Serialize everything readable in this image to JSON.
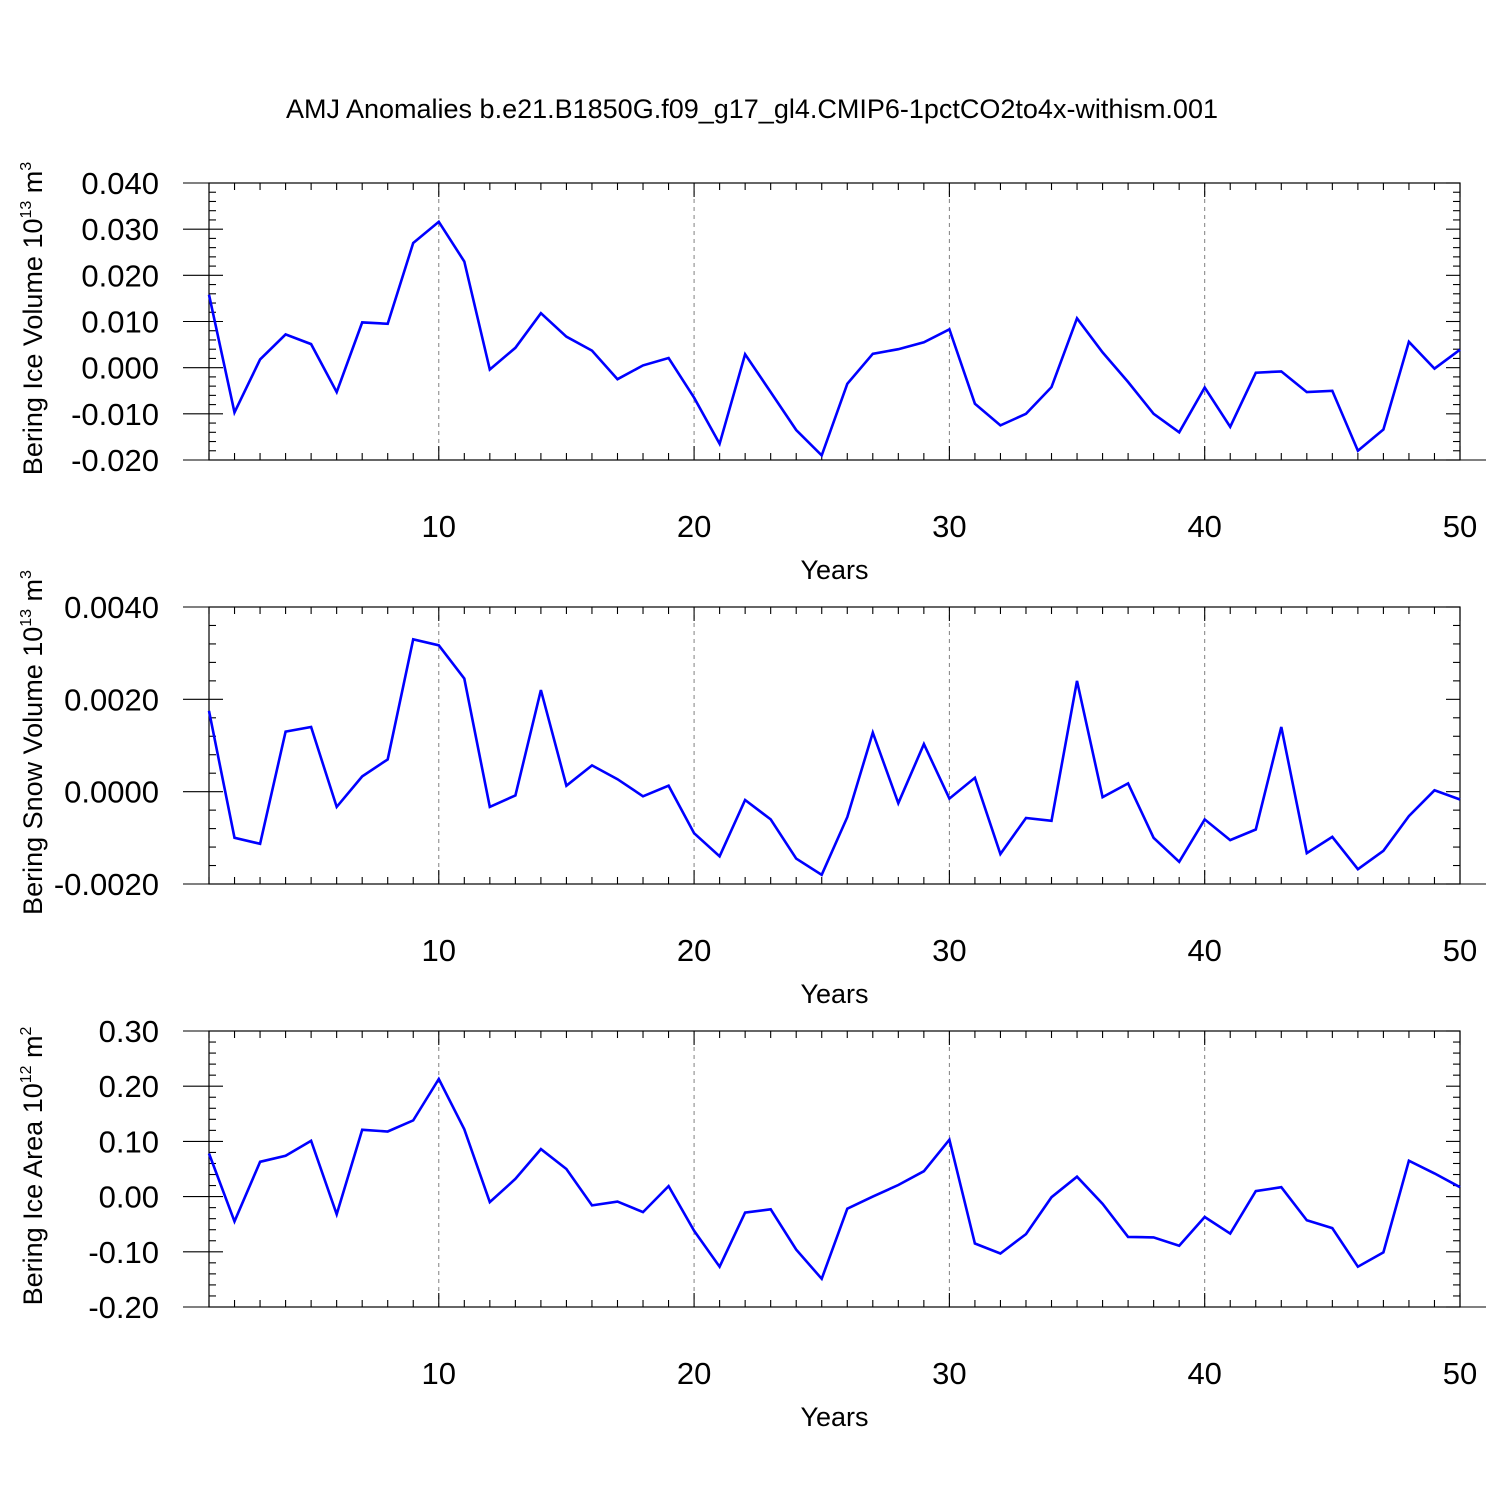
{
  "title": "AMJ Anomalies b.e21.B1850G.f09_g17_gl4.CMIP6-1pctCO2to4x-withism.001",
  "colors": {
    "line": "#0000ff",
    "grid": "#808080",
    "axes": "#000000"
  },
  "chart_data": [
    {
      "type": "line",
      "title": "",
      "xlabel": "Years",
      "ylabel": {
        "text": "Bering Ice Volume 10",
        "sup": "13",
        "unit": " m",
        "unit_sup": "3"
      },
      "x": [
        1,
        2,
        3,
        4,
        5,
        6,
        7,
        8,
        9,
        10,
        11,
        12,
        13,
        14,
        15,
        16,
        17,
        18,
        19,
        20,
        21,
        22,
        23,
        24,
        25,
        26,
        27,
        28,
        29,
        30,
        31,
        32,
        33,
        34,
        35,
        36,
        37,
        38,
        39,
        40,
        41,
        42,
        43,
        44,
        45,
        46,
        47,
        48,
        49,
        50
      ],
      "xlim": [
        1,
        50
      ],
      "xticks": [
        10,
        20,
        30,
        40,
        50
      ],
      "xtick_labels": [
        "10",
        "20",
        "30",
        "40",
        "50"
      ],
      "ylim": [
        -0.02,
        0.04
      ],
      "yticks": [
        -0.02,
        -0.01,
        0.0,
        0.01,
        0.02,
        0.03,
        0.04
      ],
      "ytick_labels": [
        "-0.020",
        "-0.010",
        "0.000",
        "0.010",
        "0.020",
        "0.030",
        "0.040"
      ],
      "grid": "x-dashed",
      "series": [
        {
          "values": [
            0.0158,
            -0.0097,
            0.0018,
            0.0072,
            0.0051,
            -0.0053,
            0.0098,
            0.0095,
            0.027,
            0.0316,
            0.023,
            -0.0004,
            0.0043,
            0.0118,
            0.0067,
            0.0037,
            -0.0025,
            0.0005,
            0.0021,
            -0.0065,
            -0.0165,
            0.0029,
            -0.0053,
            -0.0135,
            -0.019,
            -0.0035,
            0.003,
            0.004,
            0.0055,
            0.0083,
            -0.0078,
            -0.0125,
            -0.01,
            -0.0042,
            0.0107,
            0.0033,
            -0.0031,
            -0.01,
            -0.014,
            -0.0043,
            -0.0128,
            -0.0011,
            -0.0008,
            -0.0053,
            -0.005,
            -0.018,
            -0.0134,
            0.0056,
            -0.0002,
            0.0039
          ]
        }
      ]
    },
    {
      "type": "line",
      "title": "",
      "xlabel": "Years",
      "ylabel": {
        "text": "Bering Snow Volume 10",
        "sup": "13",
        "unit": " m",
        "unit_sup": "3"
      },
      "x": [
        1,
        2,
        3,
        4,
        5,
        6,
        7,
        8,
        9,
        10,
        11,
        12,
        13,
        14,
        15,
        16,
        17,
        18,
        19,
        20,
        21,
        22,
        23,
        24,
        25,
        26,
        27,
        28,
        29,
        30,
        31,
        32,
        33,
        34,
        35,
        36,
        37,
        38,
        39,
        40,
        41,
        42,
        43,
        44,
        45,
        46,
        47,
        48,
        49,
        50
      ],
      "xlim": [
        1,
        50
      ],
      "xticks": [
        10,
        20,
        30,
        40,
        50
      ],
      "xtick_labels": [
        "10",
        "20",
        "30",
        "40",
        "50"
      ],
      "ylim": [
        -0.002,
        0.004
      ],
      "yticks": [
        -0.002,
        0.0,
        0.002,
        0.004
      ],
      "ytick_labels": [
        "-0.0020",
        "0.0000",
        "0.0020",
        "0.0040"
      ],
      "grid": "x-dashed",
      "series": [
        {
          "values": [
            0.00175,
            -0.001,
            -0.00113,
            0.0013,
            0.0014,
            -0.00033,
            0.00033,
            0.0007,
            0.0033,
            0.00317,
            0.00245,
            -0.00033,
            -8e-05,
            0.0022,
            0.00013,
            0.00057,
            0.00027,
            -0.0001,
            0.00013,
            -0.0009,
            -0.0014,
            -0.00018,
            -0.0006,
            -0.00145,
            -0.0018,
            -0.00055,
            0.00128,
            -0.00025,
            0.00103,
            -0.00015,
            0.0003,
            -0.00135,
            -0.00057,
            -0.00063,
            0.0024,
            -0.00012,
            0.00018,
            -0.001,
            -0.00152,
            -0.0006,
            -0.00105,
            -0.00082,
            0.0014,
            -0.00133,
            -0.00098,
            -0.00168,
            -0.00128,
            -0.00053,
            3e-05,
            -0.00017
          ]
        }
      ]
    },
    {
      "type": "line",
      "title": "",
      "xlabel": "Years",
      "ylabel": {
        "text": "Bering Ice Area 10",
        "sup": "12",
        "unit": " m",
        "unit_sup": "2"
      },
      "x": [
        1,
        2,
        3,
        4,
        5,
        6,
        7,
        8,
        9,
        10,
        11,
        12,
        13,
        14,
        15,
        16,
        17,
        18,
        19,
        20,
        21,
        22,
        23,
        24,
        25,
        26,
        27,
        28,
        29,
        30,
        31,
        32,
        33,
        34,
        35,
        36,
        37,
        38,
        39,
        40,
        41,
        42,
        43,
        44,
        45,
        46,
        47,
        48,
        49,
        50
      ],
      "xlim": [
        1,
        50
      ],
      "xticks": [
        10,
        20,
        30,
        40,
        50
      ],
      "xtick_labels": [
        "10",
        "20",
        "30",
        "40",
        "50"
      ],
      "ylim": [
        -0.2,
        0.3
      ],
      "yticks": [
        -0.2,
        -0.1,
        0.0,
        0.1,
        0.2,
        0.3
      ],
      "ytick_labels": [
        "-0.20",
        "-0.10",
        "0.00",
        "0.10",
        "0.20",
        "0.30"
      ],
      "grid": "x-dashed",
      "series": [
        {
          "values": [
            0.078,
            -0.045,
            0.063,
            0.074,
            0.101,
            -0.032,
            0.121,
            0.118,
            0.138,
            0.213,
            0.122,
            -0.01,
            0.032,
            0.086,
            0.05,
            -0.016,
            -0.009,
            -0.028,
            0.019,
            -0.062,
            -0.127,
            -0.029,
            -0.023,
            -0.096,
            -0.149,
            -0.022,
            0.0,
            0.021,
            0.046,
            0.103,
            -0.085,
            -0.103,
            -0.068,
            -0.001,
            0.036,
            -0.013,
            -0.073,
            -0.074,
            -0.089,
            -0.037,
            -0.067,
            0.01,
            0.017,
            -0.043,
            -0.057,
            -0.127,
            -0.101,
            0.065,
            0.042,
            0.017
          ]
        }
      ]
    }
  ]
}
